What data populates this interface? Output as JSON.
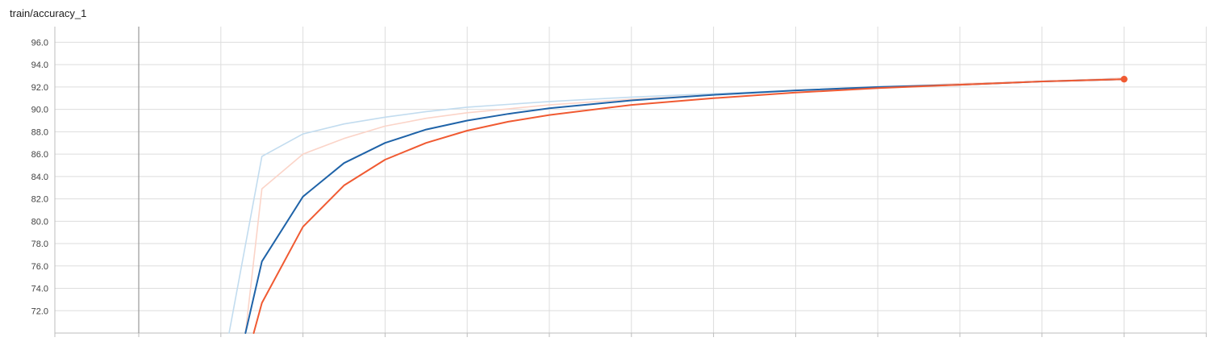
{
  "chart_data": {
    "type": "line",
    "title": "train/accuracy_1",
    "xlabel": "",
    "ylabel": "",
    "xlim": [
      -1,
      13
    ],
    "ylim": [
      70.0,
      97.4
    ],
    "yticks": [
      72.0,
      74.0,
      76.0,
      78.0,
      80.0,
      82.0,
      84.0,
      86.0,
      88.0,
      90.0,
      92.0,
      94.0,
      96.0
    ],
    "xgrid": [
      0,
      1,
      2,
      3,
      4,
      5,
      6,
      7,
      8,
      9,
      10,
      11,
      12,
      13
    ],
    "grid": true,
    "series": [
      {
        "role": "raw",
        "color": "#c2dcef",
        "x": [
          1.1,
          1.5,
          2,
          2.5,
          3,
          3.5,
          4,
          5,
          6,
          7,
          8,
          9,
          10,
          11,
          12
        ],
        "values": [
          70.0,
          85.8,
          87.8,
          88.7,
          89.3,
          89.8,
          90.2,
          90.7,
          91.1,
          91.4,
          91.7,
          91.9,
          92.2,
          92.5,
          92.8
        ]
      },
      {
        "role": "raw",
        "color": "#fbd4c8",
        "x": [
          1.3,
          1.5,
          2,
          2.5,
          3,
          3.5,
          4,
          5,
          6,
          7,
          8,
          9,
          10,
          11,
          12
        ],
        "values": [
          70.0,
          82.9,
          86.0,
          87.4,
          88.5,
          89.2,
          89.7,
          90.4,
          90.9,
          91.3,
          91.7,
          92.0,
          92.3,
          92.5,
          92.8
        ]
      },
      {
        "role": "smoothed",
        "color": "#1f63a8",
        "x": [
          1.3,
          1.5,
          2,
          2.5,
          3,
          3.5,
          4,
          4.5,
          5,
          6,
          7,
          8,
          9,
          10,
          11,
          12
        ],
        "values": [
          70.0,
          76.4,
          82.2,
          85.2,
          87.0,
          88.2,
          89.0,
          89.6,
          90.1,
          90.8,
          91.3,
          91.7,
          92.0,
          92.2,
          92.5,
          92.7
        ]
      },
      {
        "role": "smoothed",
        "color": "#f05a32",
        "x": [
          1.4,
          1.5,
          2,
          2.5,
          3,
          3.5,
          4,
          4.5,
          5,
          6,
          7,
          8,
          9,
          10,
          11,
          12
        ],
        "values": [
          70.0,
          72.7,
          79.5,
          83.2,
          85.5,
          87.0,
          88.1,
          88.9,
          89.5,
          90.4,
          91.0,
          91.5,
          91.9,
          92.2,
          92.5,
          92.7
        ]
      }
    ]
  }
}
